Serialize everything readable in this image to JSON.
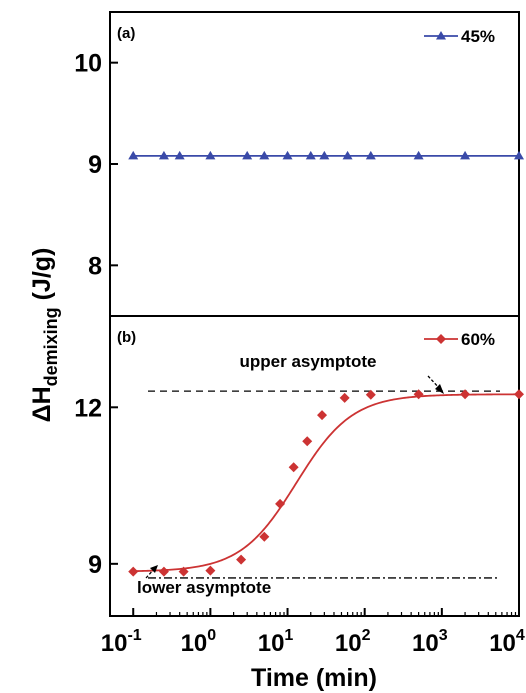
{
  "chart_data": [
    {
      "type": "line",
      "panel_label": "(a)",
      "x_scale": "log",
      "xlim": [
        0.05,
        10000
      ],
      "ylim": [
        7.5,
        10.5
      ],
      "y_ticks": [
        8,
        9,
        10
      ],
      "series": [
        {
          "name": "45%",
          "color": "#3a4aa8",
          "marker": "triangle",
          "x": [
            0.1,
            0.25,
            0.4,
            1,
            3,
            5,
            10,
            20,
            30,
            60,
            120,
            500,
            2000,
            10000
          ],
          "y": [
            9.08,
            9.08,
            9.08,
            9.08,
            9.08,
            9.08,
            9.08,
            9.08,
            9.08,
            9.08,
            9.08,
            9.08,
            9.08,
            9.08
          ]
        }
      ]
    },
    {
      "type": "line",
      "panel_label": "(b)",
      "x_scale": "log",
      "xlim": [
        0.05,
        10000
      ],
      "ylim": [
        8.0,
        13.75
      ],
      "y_ticks": [
        9,
        12
      ],
      "x_ticks": [
        {
          "value": 0.1,
          "base": "10",
          "exp": "-1"
        },
        {
          "value": 1,
          "base": "10",
          "exp": "0"
        },
        {
          "value": 10,
          "base": "10",
          "exp": "1"
        },
        {
          "value": 100,
          "base": "10",
          "exp": "2"
        },
        {
          "value": 1000,
          "base": "10",
          "exp": "3"
        },
        {
          "value": 10000,
          "base": "10",
          "exp": "4"
        }
      ],
      "series": [
        {
          "name": "60%",
          "color": "#cc3333",
          "marker": "diamond",
          "x": [
            0.1,
            0.25,
            0.45,
            1,
            2.5,
            5,
            8,
            12,
            18,
            28,
            55,
            120,
            500,
            2000,
            10000
          ],
          "y": [
            8.85,
            8.85,
            8.85,
            8.87,
            9.08,
            9.52,
            10.15,
            10.85,
            11.35,
            11.85,
            12.18,
            12.24,
            12.25,
            12.25,
            12.25
          ]
        }
      ],
      "reference_lines": [
        {
          "y": 12.31,
          "style": "dashed",
          "label": "upper asymptote"
        },
        {
          "y": 8.73,
          "style": "dash-dot",
          "label": "lower asymptote"
        }
      ],
      "fit_curve": {
        "lower": 8.85,
        "upper": 12.25,
        "x0": 13,
        "p": 1.2
      }
    }
  ],
  "axes": {
    "xlabel": "Time (min)",
    "ylabel_main": "ΔH",
    "ylabel_sub": "demixing",
    "ylabel_unit": " (J/g)"
  }
}
